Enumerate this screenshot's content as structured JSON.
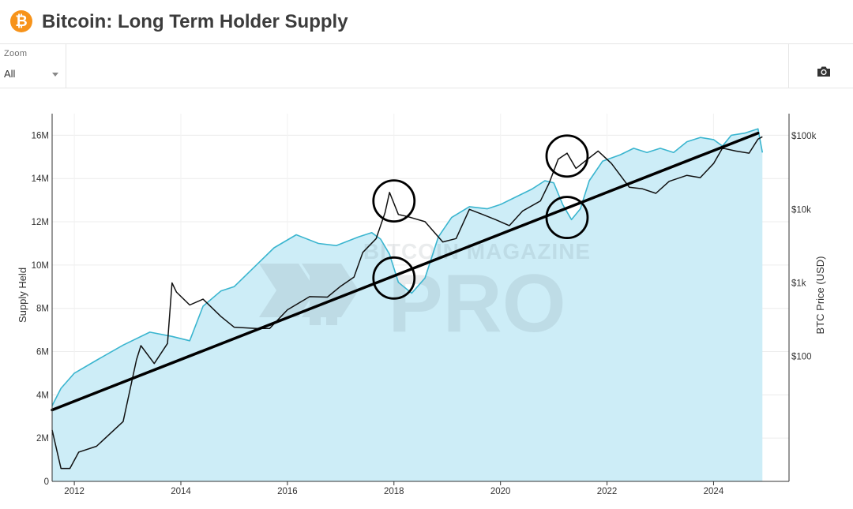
{
  "header": {
    "title": "Bitcoin: Long Term Holder Supply",
    "logo_icon": "bitcoin-logo-icon",
    "logo_glyph": "₿"
  },
  "toolbar": {
    "zoom_label": "Zoom",
    "zoom_value": "All",
    "zoom_icon": "chevron-down-icon",
    "camera_icon": "camera-icon"
  },
  "watermark": {
    "line1": "BITCOIN MAGAZINE",
    "line2": "PRO"
  },
  "colors": {
    "supply_line": "#3ab5cf",
    "supply_fill": "#cdedf7",
    "price_line": "#111111",
    "trend_line": "#000000",
    "watermark": "#5f6b73",
    "logo": "#f7931a"
  },
  "chart_data": {
    "type": "area",
    "title": "Bitcoin: Long Term Holder Supply",
    "x_axis": {
      "type": "date",
      "range": [
        "2011-08-01",
        "2025-06-01"
      ],
      "tick_labels": [
        "2012",
        "2014",
        "2016",
        "2018",
        "2020",
        "2022",
        "2024"
      ],
      "tick_values": [
        2012,
        2014,
        2016,
        2018,
        2020,
        2022,
        2024
      ]
    },
    "y_axis_left": {
      "label": "Supply Held",
      "range": [
        0,
        17000000
      ],
      "tick_values": [
        0,
        2000000,
        4000000,
        6000000,
        8000000,
        10000000,
        12000000,
        14000000,
        16000000
      ],
      "tick_labels": [
        "0",
        "2M",
        "4M",
        "6M",
        "8M",
        "10M",
        "12M",
        "14M",
        "16M"
      ]
    },
    "y_axis_right": {
      "label": "BTC Price (USD)",
      "scale": "log",
      "range": [
        2,
        200000
      ],
      "tick_values": [
        100,
        1000,
        10000,
        100000
      ],
      "tick_labels": [
        "$100",
        "$1k",
        "$10k",
        "$100k"
      ]
    },
    "grid": true,
    "legend": "none",
    "series": [
      {
        "axis": "left",
        "style": "area",
        "x": [
          "2011-08",
          "2011-10",
          "2012-01",
          "2012-06",
          "2012-12",
          "2013-06",
          "2013-11",
          "2014-03",
          "2014-06",
          "2014-10",
          "2015-01",
          "2015-06",
          "2015-10",
          "2016-03",
          "2016-08",
          "2016-12",
          "2017-05",
          "2017-08",
          "2017-10",
          "2017-12",
          "2018-02",
          "2018-05",
          "2018-08",
          "2018-11",
          "2019-02",
          "2019-06",
          "2019-10",
          "2020-01",
          "2020-04",
          "2020-08",
          "2020-11",
          "2021-01",
          "2021-03",
          "2021-05",
          "2021-07",
          "2021-09",
          "2021-12",
          "2022-04",
          "2022-07",
          "2022-10",
          "2023-01",
          "2023-04",
          "2023-07",
          "2023-10",
          "2024-01",
          "2024-03",
          "2024-05",
          "2024-08",
          "2024-11",
          "2024-12"
        ],
        "values": [
          3500000,
          4300000,
          5000000,
          5600000,
          6300000,
          6900000,
          6700000,
          6500000,
          8100000,
          8800000,
          9000000,
          10000000,
          10800000,
          11400000,
          11000000,
          10900000,
          11300000,
          11500000,
          11200000,
          10500000,
          9200000,
          8700000,
          9400000,
          11300000,
          12200000,
          12700000,
          12600000,
          12800000,
          13100000,
          13500000,
          13900000,
          13800000,
          12800000,
          12100000,
          12600000,
          13900000,
          14800000,
          15100000,
          15400000,
          15200000,
          15400000,
          15200000,
          15700000,
          15900000,
          15800000,
          15500000,
          16000000,
          16100000,
          16300000,
          15200000
        ]
      },
      {
        "axis": "right",
        "style": "line",
        "x": [
          "2011-08",
          "2011-10",
          "2011-12",
          "2012-02",
          "2012-06",
          "2012-12",
          "2013-03",
          "2013-04",
          "2013-07",
          "2013-10",
          "2013-11",
          "2013-12",
          "2014-03",
          "2014-06",
          "2014-10",
          "2015-01",
          "2015-06",
          "2015-09",
          "2016-01",
          "2016-06",
          "2016-10",
          "2017-01",
          "2017-04",
          "2017-06",
          "2017-09",
          "2017-11",
          "2017-12",
          "2018-02",
          "2018-04",
          "2018-08",
          "2018-12",
          "2019-03",
          "2019-06",
          "2019-09",
          "2019-12",
          "2020-03",
          "2020-06",
          "2020-10",
          "2020-12",
          "2021-02",
          "2021-04",
          "2021-06",
          "2021-08",
          "2021-11",
          "2022-02",
          "2022-06",
          "2022-09",
          "2022-12",
          "2023-03",
          "2023-07",
          "2023-10",
          "2024-01",
          "2024-03",
          "2024-06",
          "2024-09",
          "2024-11",
          "2024-12"
        ],
        "values": [
          10,
          3,
          3,
          5,
          6,
          13,
          90,
          140,
          80,
          150,
          1000,
          750,
          500,
          600,
          350,
          250,
          240,
          240,
          430,
          650,
          640,
          900,
          1200,
          2600,
          4000,
          9000,
          17000,
          8500,
          8000,
          6800,
          3600,
          4000,
          10000,
          8500,
          7200,
          6000,
          9500,
          13000,
          23000,
          48000,
          58000,
          36000,
          45000,
          62000,
          42000,
          20000,
          19000,
          16500,
          24000,
          29000,
          27000,
          42000,
          68000,
          62000,
          58000,
          90000,
          97000
        ]
      },
      {
        "axis": "left",
        "style": "line",
        "x": [
          "2011-08",
          "2024-11"
        ],
        "values": [
          3300000,
          16100000
        ]
      }
    ],
    "annotations": [
      {
        "type": "circle",
        "x": "2018-01",
        "axis": "right",
        "y": 13000
      },
      {
        "type": "circle",
        "x": "2018-01",
        "axis": "left",
        "y": 9400000
      },
      {
        "type": "circle",
        "x": "2021-04",
        "axis": "right",
        "y": 53000
      },
      {
        "type": "circle",
        "x": "2021-04",
        "axis": "left",
        "y": 12200000
      }
    ]
  }
}
